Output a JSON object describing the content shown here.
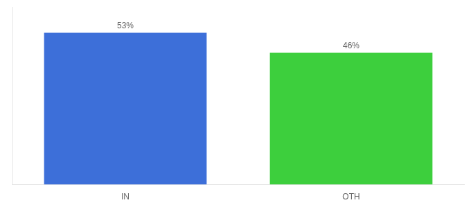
{
  "chart_data": {
    "type": "bar",
    "categories": [
      "IN",
      "OTH"
    ],
    "values": [
      53,
      46
    ],
    "value_labels": [
      "53%",
      "46%"
    ],
    "colors": [
      "#3d6fd9",
      "#3dcf3d"
    ],
    "ylim": [
      0,
      62
    ],
    "yticks": [],
    "grid": false,
    "tick_labels": "x",
    "data_labels": true
  }
}
